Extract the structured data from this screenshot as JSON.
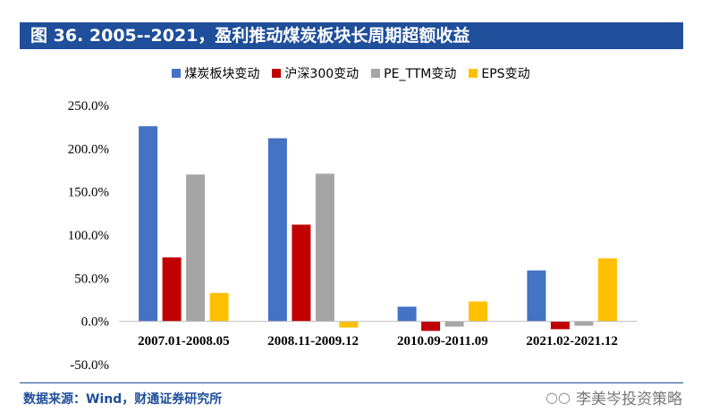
{
  "figure": {
    "title": "图 36. 2005--2021，盈利推动煤炭板块长周期超额收益",
    "source": "数据来源：Wind，财通证券研究所",
    "watermark": "李美岑投资策略"
  },
  "chart_data": {
    "type": "bar",
    "categories": [
      "2007.01-2008.05",
      "2008.11-2009.12",
      "2010.09-2011.09",
      "2021.02-2021.12"
    ],
    "series": [
      {
        "name": "煤炭板块变动",
        "color": "#4472c4",
        "values": [
          226,
          212,
          17,
          59
        ]
      },
      {
        "name": "沪深300变动",
        "color": "#c00000",
        "values": [
          74,
          112,
          -11,
          -9
        ]
      },
      {
        "name": "PE_TTM变动",
        "color": "#a5a5a5",
        "values": [
          170,
          171,
          -6,
          -5
        ]
      },
      {
        "name": "EPS变动",
        "color": "#ffc000",
        "values": [
          33,
          -7,
          23,
          73
        ]
      }
    ],
    "ylim": [
      -50,
      250
    ],
    "yticks": [
      -50,
      0,
      50,
      100,
      150,
      200,
      250
    ],
    "ytick_labels": [
      "-50.0%",
      "0.0%",
      "50.0%",
      "100.0%",
      "150.0%",
      "200.0%",
      "250.0%"
    ],
    "grid": false,
    "legend_position": "top",
    "xlabel": "",
    "ylabel": ""
  }
}
